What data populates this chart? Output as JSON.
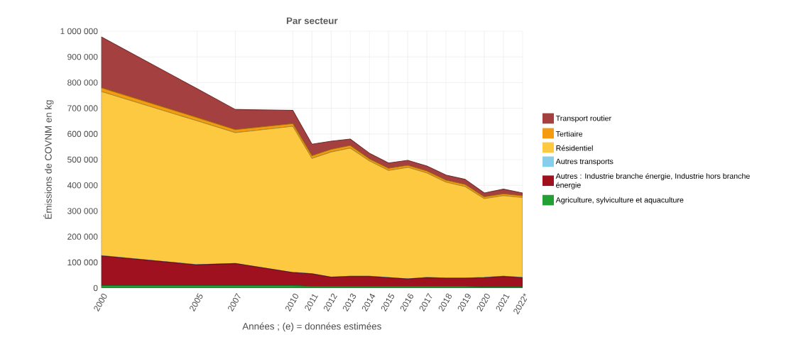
{
  "chart_data": {
    "type": "area",
    "title": "Par secteur",
    "xlabel": "Années ; (e) = données estimées",
    "ylabel": "Émissions de COVNM en kg",
    "stacked": true,
    "x": [
      2000,
      2005,
      2007,
      2010,
      2011,
      2012,
      2013,
      2014,
      2015,
      2016,
      2017,
      2018,
      2019,
      2020,
      2021,
      2022
    ],
    "series": [
      {
        "name": "Agriculture, sylviculture et aquaculture",
        "color": "#22a033",
        "values": [
          10000,
          10000,
          10000,
          10000,
          6000,
          6000,
          6000,
          6000,
          6000,
          6000,
          6000,
          6000,
          6000,
          4000,
          4000,
          4000
        ]
      },
      {
        "name": "Autres : Industrie branche énergie, Industrie hors branche énergie",
        "color": "#a0111f",
        "values": [
          115000,
          80000,
          85000,
          50000,
          49000,
          36000,
          39000,
          39000,
          34000,
          29000,
          34000,
          32000,
          32000,
          36000,
          41000,
          36000
        ]
      },
      {
        "name": "Autres transports",
        "color": "#87ceeb",
        "values": [
          1000,
          1000,
          1000,
          1000,
          1000,
          1000,
          1000,
          1000,
          1000,
          1000,
          1000,
          1000,
          1000,
          1000,
          1000,
          1000
        ]
      },
      {
        "name": "Résidentiel",
        "color": "#fcc940",
        "values": [
          639000,
          560000,
          509000,
          569000,
          449000,
          487000,
          499000,
          449000,
          417000,
          434000,
          407000,
          373000,
          356000,
          307000,
          314000,
          311000
        ]
      },
      {
        "name": "Tertiaire",
        "color": "#f39c12",
        "values": [
          15000,
          13000,
          12000,
          10000,
          10000,
          10000,
          10000,
          8000,
          8000,
          8000,
          8000,
          8000,
          8000,
          7000,
          7000,
          7000
        ]
      },
      {
        "name": "Transport routier",
        "color": "#a4403f",
        "values": [
          198000,
          112000,
          78000,
          52000,
          45000,
          32000,
          25000,
          22000,
          21000,
          19000,
          19000,
          20000,
          20000,
          15000,
          18000,
          11000
        ]
      }
    ],
    "xlim": [
      2000,
      2022
    ],
    "xticks": [
      2000,
      2005,
      2007,
      2010,
      2011,
      2012,
      2013,
      2014,
      2015,
      2016,
      2017,
      2018,
      2019,
      2020,
      2021,
      {
        "value": 2022,
        "label": "2022*"
      }
    ],
    "ylim": [
      0,
      1000000
    ],
    "yticks": [
      0,
      {
        "value": 100000,
        "label": "100 000"
      },
      {
        "value": 200000,
        "label": "200 000"
      },
      {
        "value": 300000,
        "label": "300 000"
      },
      {
        "value": 400000,
        "label": "400 000"
      },
      {
        "value": 500000,
        "label": "500 000"
      },
      {
        "value": 600000,
        "label": "600 000"
      },
      {
        "value": 700000,
        "label": "700 000"
      },
      {
        "value": 800000,
        "label": "800 000"
      },
      {
        "value": 900000,
        "label": "900 000"
      },
      {
        "value": 1000000,
        "label": "1 000 000"
      }
    ],
    "grid": true,
    "legend": "right"
  }
}
